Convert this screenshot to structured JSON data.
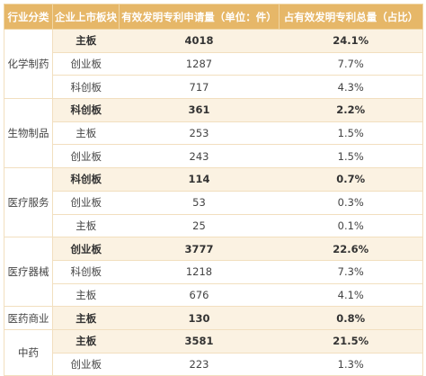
{
  "headers": {
    "industry": "行业分类",
    "board": "企业上市板块",
    "patents": "有效发明专利申请量（单位：件）",
    "share": "占有效发明专利总量（占比）"
  },
  "groups": [
    {
      "industry": "化学制药",
      "rows": [
        {
          "board": "主板",
          "patents": "4018",
          "share": "24.1%",
          "highlight": true
        },
        {
          "board": "创业板",
          "patents": "1287",
          "share": "7.7%",
          "highlight": false
        },
        {
          "board": "科创板",
          "patents": "717",
          "share": "4.3%",
          "highlight": false
        }
      ]
    },
    {
      "industry": "生物制品",
      "rows": [
        {
          "board": "科创板",
          "patents": "361",
          "share": "2.2%",
          "highlight": true
        },
        {
          "board": "主板",
          "patents": "253",
          "share": "1.5%",
          "highlight": false
        },
        {
          "board": "创业板",
          "patents": "243",
          "share": "1.5%",
          "highlight": false
        }
      ]
    },
    {
      "industry": "医疗服务",
      "rows": [
        {
          "board": "科创板",
          "patents": "114",
          "share": "0.7%",
          "highlight": true
        },
        {
          "board": "创业板",
          "patents": "53",
          "share": "0.3%",
          "highlight": false
        },
        {
          "board": "主板",
          "patents": "25",
          "share": "0.1%",
          "highlight": false
        }
      ]
    },
    {
      "industry": "医疗器械",
      "rows": [
        {
          "board": "创业板",
          "patents": "3777",
          "share": "22.6%",
          "highlight": true
        },
        {
          "board": "科创板",
          "patents": "1218",
          "share": "7.3%",
          "highlight": false
        },
        {
          "board": "主板",
          "patents": "676",
          "share": "4.1%",
          "highlight": false
        }
      ]
    },
    {
      "industry": "医药商业",
      "rows": [
        {
          "board": "主板",
          "patents": "130",
          "share": "0.8%",
          "highlight": true
        }
      ]
    },
    {
      "industry": "中药",
      "rows": [
        {
          "board": "主板",
          "patents": "3581",
          "share": "21.5%",
          "highlight": true
        },
        {
          "board": "创业板",
          "patents": "223",
          "share": "1.3%",
          "highlight": false
        }
      ]
    }
  ]
}
